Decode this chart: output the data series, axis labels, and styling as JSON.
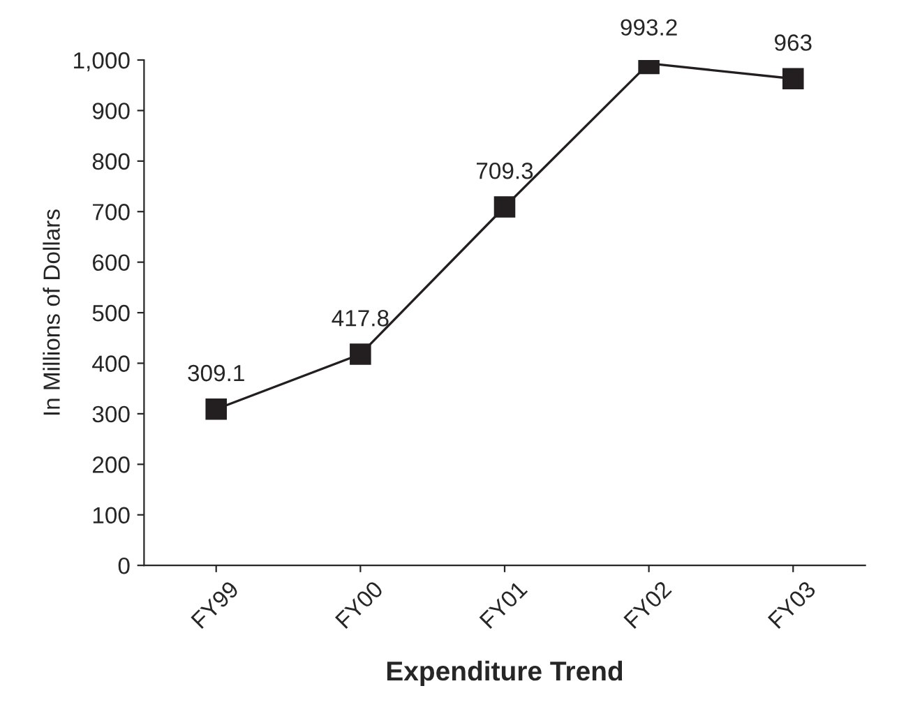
{
  "chart_data": {
    "type": "line",
    "xlabel": "Expenditure Trend",
    "ylabel": "In Millions of Dollars",
    "categories": [
      "FY99",
      "FY00",
      "FY01",
      "FY02",
      "FY03"
    ],
    "series": [
      {
        "color": "#231f20",
        "values": [
          309.1,
          417.8,
          709.3,
          993.2,
          963
        ]
      }
    ],
    "ylim": [
      0,
      1000
    ],
    "yticks": [
      0,
      100,
      200,
      300,
      400,
      500,
      600,
      700,
      800,
      900,
      {
        "value": 1000,
        "label": "1,000"
      }
    ],
    "data_labels": true,
    "marker": "square",
    "line_style": "solid",
    "grid": false,
    "legend": false
  }
}
